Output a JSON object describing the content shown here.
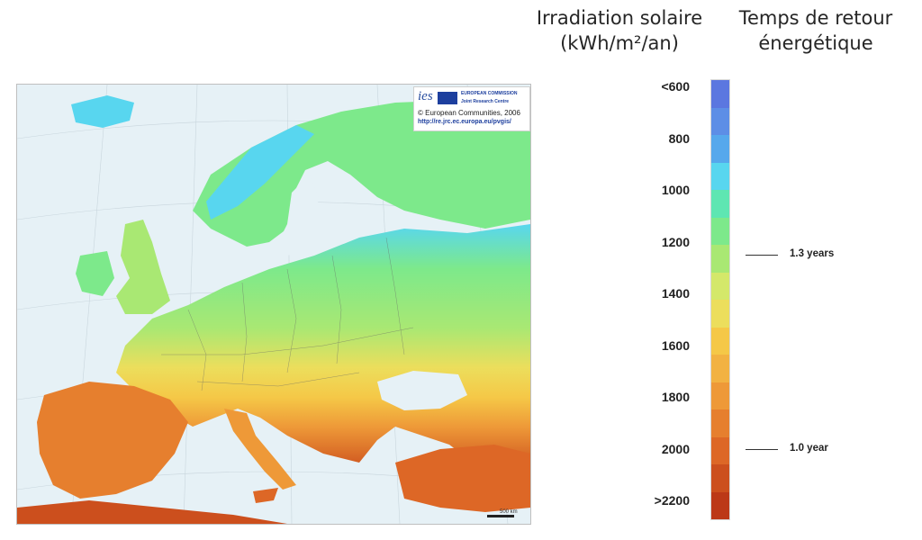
{
  "headers": {
    "irradiation_line1": "Irradiation solaire",
    "irradiation_line2": "(kWh/m²/an)",
    "return_line1": "Temps de retour",
    "return_line2": "énergétique"
  },
  "map": {
    "logo_ies": "ies",
    "logo_ec": "EUROPEAN COMMISSION",
    "logo_jrc": "Joint Research Centre",
    "copyright": "© European Communities, 2006",
    "url": "http://re.jrc.ec.europa.eu/pvgis/",
    "scale_label": "500 km"
  },
  "legend": {
    "ticks": [
      "<600",
      "800",
      "1000",
      "1200",
      "1400",
      "1600",
      "1800",
      "2000",
      ">2200"
    ],
    "colors": [
      "#5b77e0",
      "#5d8ee6",
      "#56a8ec",
      "#58d6ef",
      "#5ee6b2",
      "#7de98b",
      "#a9e873",
      "#d4e86a",
      "#ecde5c",
      "#f5c847",
      "#f2b242",
      "#ee9938",
      "#e67f2e",
      "#dd6726",
      "#cc4f1d",
      "#bc3817"
    ],
    "payback": [
      {
        "label": "1.3 years",
        "irradiation": 1250
      },
      {
        "label": "1.0 year",
        "irradiation": 2000
      }
    ]
  }
}
